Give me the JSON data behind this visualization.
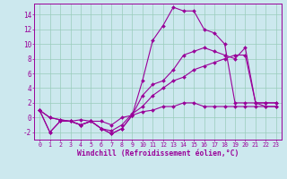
{
  "xlabel": "Windchill (Refroidissement éolien,°C)",
  "bg_color": "#cce8ee",
  "grid_color": "#99ccbb",
  "line_color": "#990099",
  "xlim": [
    -0.5,
    23.5
  ],
  "ylim": [
    -3,
    15.5
  ],
  "xticks": [
    0,
    1,
    2,
    3,
    4,
    5,
    6,
    7,
    8,
    9,
    10,
    11,
    12,
    13,
    14,
    15,
    16,
    17,
    18,
    19,
    20,
    21,
    22,
    23
  ],
  "yticks": [
    -2,
    0,
    2,
    4,
    6,
    8,
    10,
    12,
    14
  ],
  "x_data": [
    0,
    1,
    2,
    3,
    4,
    5,
    6,
    7,
    8,
    9,
    10,
    11,
    12,
    13,
    14,
    15,
    16,
    17,
    18,
    19,
    20,
    21,
    22,
    23
  ],
  "s1": [
    1,
    -2,
    -0.5,
    -0.5,
    -1,
    -0.5,
    -1.5,
    -2.2,
    -1.5,
    0.3,
    5,
    10.5,
    12.5,
    15,
    14.5,
    14.5,
    12,
    11.5,
    10,
    2,
    2,
    2,
    1.5,
    1.5
  ],
  "s2": [
    1,
    -2,
    -0.5,
    -0.5,
    -1,
    -0.5,
    -1.5,
    -2.2,
    -1.5,
    0.3,
    3,
    4.5,
    5,
    6.5,
    8.5,
    9,
    9.5,
    9,
    8.5,
    8,
    9.5,
    2,
    2,
    2
  ],
  "s3": [
    1,
    0,
    -0.3,
    -0.5,
    -1,
    -0.5,
    -1.5,
    -1.8,
    -1,
    0.5,
    1.5,
    3,
    4,
    5,
    5.5,
    6.5,
    7,
    7.5,
    8,
    8.5,
    8.5,
    2,
    2,
    2
  ],
  "s4": [
    1,
    0,
    -0.3,
    -0.5,
    -0.3,
    -0.5,
    -0.5,
    -1,
    0,
    0.3,
    0.8,
    1,
    1.5,
    1.5,
    2,
    2,
    1.5,
    1.5,
    1.5,
    1.5,
    1.5,
    1.5,
    1.5,
    1.5
  ]
}
